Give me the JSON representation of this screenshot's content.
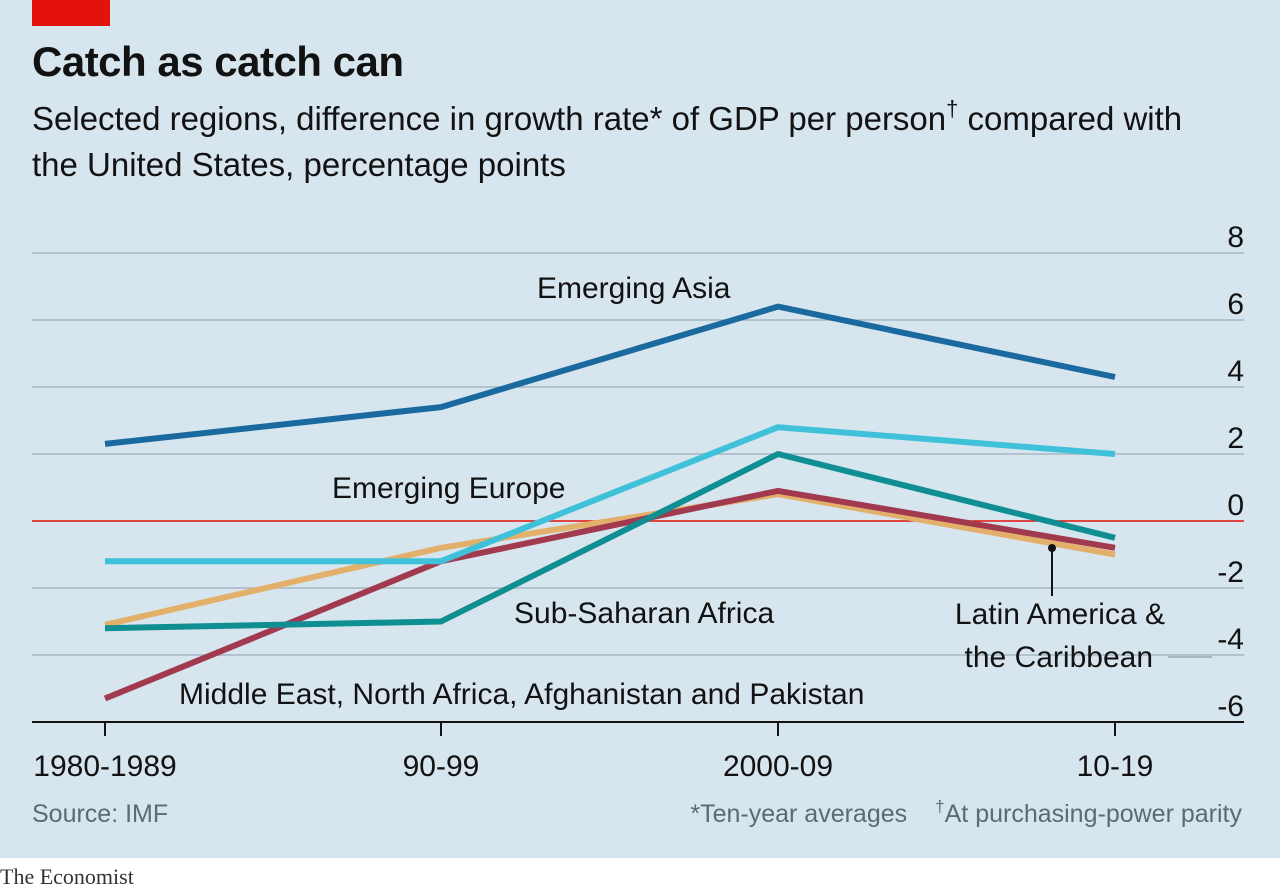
{
  "header": {
    "title": "Catch as catch can",
    "subtitle": "Selected regions, difference in growth rate* of GDP per person",
    "subtitle_mark": "†",
    "subtitle_tail": " compared with the United States, percentage points"
  },
  "footer": {
    "source": "Source: IMF",
    "note1": "*Ten-year averages",
    "note2_mark": "†",
    "note2": "At purchasing-power parity",
    "brand": "The Economist"
  },
  "colors": {
    "background": "#d7e5ee",
    "brand_red": "#e3120b",
    "zero_line": "#e3120b",
    "grid": "#a7b8c2"
  },
  "chart_data": {
    "type": "line",
    "title": "Catch as catch can",
    "subtitle": "Selected regions, difference in growth rate* of GDP per person† compared with the United States, percentage points",
    "categories": [
      "1980-1989",
      "90-99",
      "2000-09",
      "10-19"
    ],
    "y_ticks": [
      8,
      6,
      4,
      2,
      0,
      -2,
      -4,
      -6
    ],
    "ylim": [
      -6,
      8
    ],
    "grid": true,
    "y_axis_side": "right",
    "series": [
      {
        "name": "Emerging Asia",
        "color": "#1a6aa0",
        "values": [
          2.3,
          3.4,
          6.4,
          4.3
        ]
      },
      {
        "name": "Emerging Europe",
        "color": "#3ec1d9",
        "values": [
          -1.2,
          -1.2,
          2.8,
          2.0
        ]
      },
      {
        "name": "Sub-Saharan Africa",
        "color": "#0f8f92",
        "values": [
          -3.2,
          -3.0,
          2.0,
          -0.5
        ]
      },
      {
        "name": "Latin America & the Caribbean",
        "color": "#e3b06b",
        "values": [
          -3.1,
          -0.8,
          0.8,
          -1.0
        ]
      },
      {
        "name": "Middle East, North Africa, Afghanistan and Pakistan",
        "color": "#a23a4f",
        "values": [
          -5.3,
          -1.2,
          0.9,
          -0.8
        ]
      }
    ],
    "labels": {
      "emerging_asia": "Emerging Asia",
      "emerging_europe": "Emerging Europe",
      "sub_saharan_africa": "Sub-Saharan Africa",
      "latin_america_line1": "Latin America &",
      "latin_america_line2": "the Caribbean",
      "middle_east": "Middle East, North Africa, Afghanistan and Pakistan"
    }
  }
}
